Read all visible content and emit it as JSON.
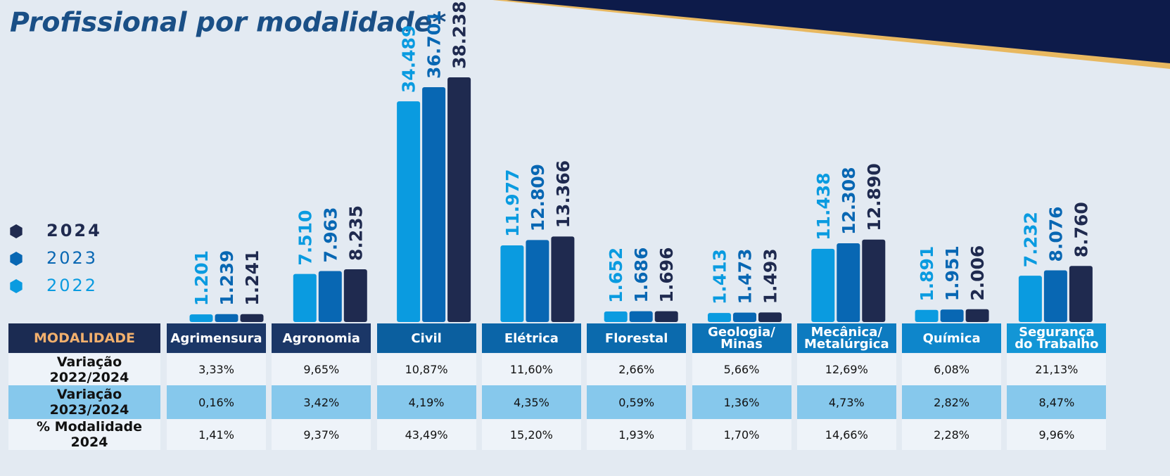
{
  "chart_data": {
    "type": "bar",
    "title": "Profissional por modalidade*",
    "categories": [
      "Agrimensura",
      "Agronomia",
      "Civil",
      "Elétrica",
      "Florestal",
      "Geologia/\nMinas",
      "Mecânica/\nMetalúrgica",
      "Química",
      "Segurança\ndo Trabalho"
    ],
    "series": [
      {
        "name": "2022",
        "color": "#0a9be0",
        "values": [
          1201,
          7510,
          34489,
          11977,
          1652,
          1413,
          11438,
          1891,
          7232
        ],
        "value_labels": [
          "1.201",
          "7.510",
          "34.489",
          "11.977",
          "1.652",
          "1.413",
          "11.438",
          "1.891",
          "7.232"
        ]
      },
      {
        "name": "2023",
        "color": "#0867b3",
        "values": [
          1239,
          7963,
          36701,
          12809,
          1686,
          1473,
          12308,
          1951,
          8076
        ],
        "value_labels": [
          "1.239",
          "7.963",
          "36.701",
          "12.809",
          "1.686",
          "1.473",
          "12.308",
          "1.951",
          "8.076"
        ]
      },
      {
        "name": "2024",
        "color": "#1f2a4f",
        "values": [
          1241,
          8235,
          38238,
          13366,
          1696,
          1493,
          12890,
          2006,
          8760
        ],
        "value_labels": [
          "1.241",
          "8.235",
          "38.238",
          "13.366",
          "1.696",
          "1.493",
          "12.890",
          "2.006",
          "8.760"
        ]
      }
    ]
  },
  "table": {
    "header": "MODALIDADE",
    "rows": [
      {
        "label": "Variação 2022/2024",
        "values": [
          "3,33%",
          "9,65%",
          "10,87%",
          "11,60%",
          "2,66%",
          "5,66%",
          "12,69%",
          "6,08%",
          "21,13%"
        ]
      },
      {
        "label": "Variação 2023/2024",
        "values": [
          "0,16%",
          "3,42%",
          "4,19%",
          "4,35%",
          "0,59%",
          "1,36%",
          "4,73%",
          "2,82%",
          "8,47%"
        ]
      },
      {
        "label": "% Modalidade 2024",
        "values": [
          "1,41%",
          "9,37%",
          "43,49%",
          "15,20%",
          "1,93%",
          "1,70%",
          "14,66%",
          "2,28%",
          "9,96%"
        ]
      }
    ]
  }
}
